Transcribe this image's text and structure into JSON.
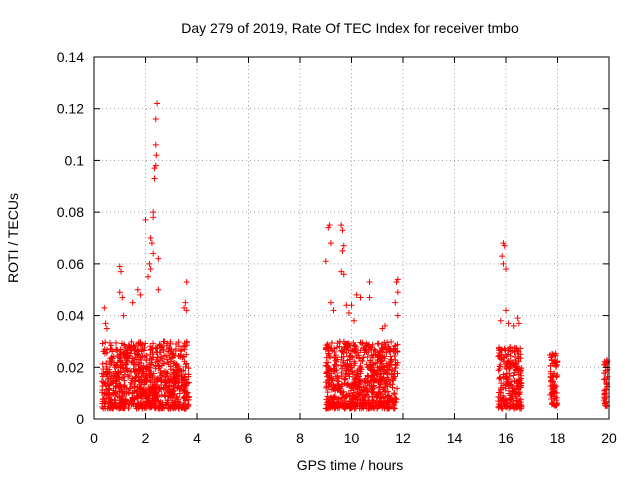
{
  "chart_data": {
    "type": "scatter",
    "title": "Day 279 of 2019, Rate Of TEC Index for receiver tmbo",
    "xlabel": "GPS time / hours",
    "ylabel": "ROTI / TECUs",
    "xlim": [
      0,
      20
    ],
    "ylim": [
      0,
      0.14
    ],
    "xticks": [
      0,
      2,
      4,
      6,
      8,
      10,
      12,
      14,
      16,
      18,
      20
    ],
    "xtick_labels": [
      "0",
      "2",
      "4",
      "6",
      "8",
      "10",
      "12",
      "14",
      "16",
      "18",
      "20"
    ],
    "yticks": [
      0,
      0.02,
      0.04,
      0.06,
      0.08,
      0.1,
      0.12,
      0.14
    ],
    "ytick_labels": [
      "0",
      "0.02",
      "0.04",
      "0.06",
      "0.08",
      "0.1",
      "0.12",
      "0.14"
    ],
    "grid": true,
    "marker": "+",
    "color": "#ff0000",
    "clusters": [
      {
        "x_range": [
          0.3,
          3.7
        ],
        "y_base": [
          0.004,
          0.03
        ]
      },
      {
        "x_range": [
          9.0,
          11.8
        ],
        "y_base": [
          0.004,
          0.03
        ]
      },
      {
        "x_range": [
          15.7,
          16.6
        ],
        "y_base": [
          0.004,
          0.028
        ]
      },
      {
        "x_range": [
          17.7,
          18.0
        ],
        "y_base": [
          0.005,
          0.026
        ]
      },
      {
        "x_range": [
          19.8,
          19.95
        ],
        "y_base": [
          0.005,
          0.023
        ]
      }
    ],
    "outliers": [
      {
        "x": 0.4,
        "y": 0.043
      },
      {
        "x": 0.45,
        "y": 0.037
      },
      {
        "x": 0.5,
        "y": 0.035
      },
      {
        "x": 1.0,
        "y": 0.059
      },
      {
        "x": 1.05,
        "y": 0.057
      },
      {
        "x": 1.0,
        "y": 0.049
      },
      {
        "x": 1.1,
        "y": 0.047
      },
      {
        "x": 1.15,
        "y": 0.04
      },
      {
        "x": 1.5,
        "y": 0.045
      },
      {
        "x": 1.7,
        "y": 0.05
      },
      {
        "x": 1.8,
        "y": 0.048
      },
      {
        "x": 2.0,
        "y": 0.077
      },
      {
        "x": 2.1,
        "y": 0.055
      },
      {
        "x": 2.2,
        "y": 0.07
      },
      {
        "x": 2.25,
        "y": 0.068
      },
      {
        "x": 2.3,
        "y": 0.064
      },
      {
        "x": 2.3,
        "y": 0.08
      },
      {
        "x": 2.35,
        "y": 0.097
      },
      {
        "x": 2.35,
        "y": 0.093
      },
      {
        "x": 2.4,
        "y": 0.098
      },
      {
        "x": 2.4,
        "y": 0.106
      },
      {
        "x": 2.42,
        "y": 0.102
      },
      {
        "x": 2.4,
        "y": 0.116
      },
      {
        "x": 2.45,
        "y": 0.122
      },
      {
        "x": 2.3,
        "y": 0.078
      },
      {
        "x": 2.5,
        "y": 0.062
      },
      {
        "x": 2.5,
        "y": 0.05
      },
      {
        "x": 2.2,
        "y": 0.058
      },
      {
        "x": 2.15,
        "y": 0.06
      },
      {
        "x": 3.6,
        "y": 0.053
      },
      {
        "x": 3.55,
        "y": 0.045
      },
      {
        "x": 3.6,
        "y": 0.042
      },
      {
        "x": 3.5,
        "y": 0.043
      },
      {
        "x": 9.0,
        "y": 0.061
      },
      {
        "x": 9.1,
        "y": 0.074
      },
      {
        "x": 9.15,
        "y": 0.075
      },
      {
        "x": 9.2,
        "y": 0.068
      },
      {
        "x": 9.6,
        "y": 0.075
      },
      {
        "x": 9.65,
        "y": 0.073
      },
      {
        "x": 9.7,
        "y": 0.067
      },
      {
        "x": 9.65,
        "y": 0.065
      },
      {
        "x": 9.6,
        "y": 0.057
      },
      {
        "x": 9.7,
        "y": 0.056
      },
      {
        "x": 9.8,
        "y": 0.044
      },
      {
        "x": 10.0,
        "y": 0.044
      },
      {
        "x": 9.9,
        "y": 0.041
      },
      {
        "x": 10.2,
        "y": 0.048
      },
      {
        "x": 10.35,
        "y": 0.047
      },
      {
        "x": 10.1,
        "y": 0.038
      },
      {
        "x": 10.7,
        "y": 0.053
      },
      {
        "x": 10.7,
        "y": 0.047
      },
      {
        "x": 11.3,
        "y": 0.036
      },
      {
        "x": 11.2,
        "y": 0.035
      },
      {
        "x": 11.8,
        "y": 0.054
      },
      {
        "x": 11.75,
        "y": 0.053
      },
      {
        "x": 11.8,
        "y": 0.049
      },
      {
        "x": 11.7,
        "y": 0.045
      },
      {
        "x": 11.8,
        "y": 0.04
      },
      {
        "x": 9.2,
        "y": 0.045
      },
      {
        "x": 9.3,
        "y": 0.042
      },
      {
        "x": 15.9,
        "y": 0.068
      },
      {
        "x": 15.95,
        "y": 0.067
      },
      {
        "x": 15.9,
        "y": 0.06
      },
      {
        "x": 16.0,
        "y": 0.058
      },
      {
        "x": 15.85,
        "y": 0.063
      },
      {
        "x": 16.1,
        "y": 0.037
      },
      {
        "x": 16.3,
        "y": 0.036
      },
      {
        "x": 16.45,
        "y": 0.039
      },
      {
        "x": 16.5,
        "y": 0.037
      },
      {
        "x": 15.8,
        "y": 0.038
      },
      {
        "x": 16.0,
        "y": 0.042
      }
    ]
  }
}
